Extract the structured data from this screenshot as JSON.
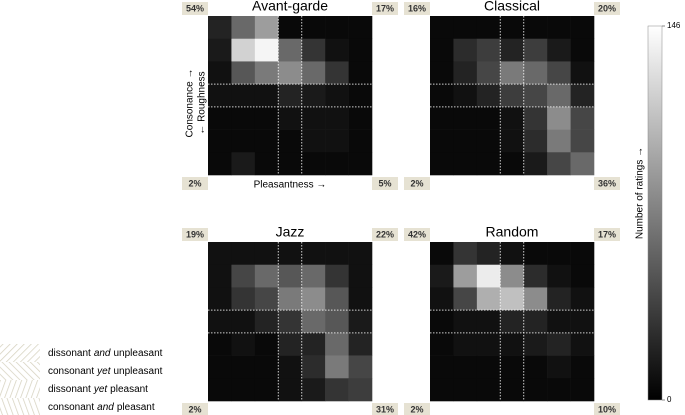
{
  "chart_data": [
    {
      "type": "heatmap",
      "title": "Avant-garde",
      "xlabel": "Pleasantness →",
      "ylabel": "Consonance →",
      "ylabel2": "← Roughness",
      "values": [
        [
          20,
          60,
          90,
          5,
          5,
          5,
          5
        ],
        [
          15,
          120,
          140,
          60,
          30,
          10,
          5
        ],
        [
          10,
          50,
          70,
          80,
          60,
          30,
          5
        ],
        [
          10,
          10,
          10,
          20,
          15,
          10,
          5
        ],
        [
          5,
          5,
          5,
          10,
          10,
          10,
          5
        ],
        [
          5,
          5,
          5,
          5,
          10,
          10,
          5
        ],
        [
          5,
          15,
          5,
          5,
          5,
          5,
          5
        ]
      ],
      "corner_values": [
        54,
        17,
        2,
        5
      ],
      "corner_labels": [
        "54%",
        "17%",
        "2%",
        "5%"
      ]
    },
    {
      "type": "heatmap",
      "title": "Classical",
      "values": [
        [
          5,
          5,
          5,
          5,
          5,
          5,
          5
        ],
        [
          5,
          25,
          35,
          20,
          35,
          15,
          5
        ],
        [
          5,
          20,
          40,
          70,
          60,
          40,
          10
        ],
        [
          5,
          10,
          20,
          35,
          40,
          60,
          20
        ],
        [
          5,
          5,
          5,
          10,
          30,
          80,
          40
        ],
        [
          5,
          5,
          5,
          10,
          25,
          70,
          40
        ],
        [
          5,
          5,
          5,
          5,
          15,
          40,
          60
        ]
      ],
      "corner_values": [
        16,
        20,
        2,
        36
      ],
      "corner_labels": [
        "16%",
        "20%",
        "2%",
        "36%"
      ]
    },
    {
      "type": "heatmap",
      "title": "Jazz",
      "values": [
        [
          10,
          10,
          10,
          10,
          10,
          10,
          10
        ],
        [
          10,
          40,
          60,
          50,
          60,
          30,
          10
        ],
        [
          10,
          30,
          40,
          70,
          80,
          50,
          10
        ],
        [
          10,
          10,
          20,
          30,
          60,
          50,
          15
        ],
        [
          5,
          10,
          5,
          20,
          20,
          60,
          20
        ],
        [
          5,
          5,
          5,
          10,
          25,
          70,
          40
        ],
        [
          5,
          5,
          5,
          10,
          15,
          30,
          35
        ]
      ],
      "corner_values": [
        19,
        22,
        2,
        31
      ],
      "corner_labels": [
        "19%",
        "22%",
        "2%",
        "31%"
      ]
    },
    {
      "type": "heatmap",
      "title": "Random",
      "values": [
        [
          5,
          30,
          20,
          10,
          5,
          5,
          5
        ],
        [
          15,
          90,
          135,
          80,
          25,
          10,
          5
        ],
        [
          10,
          40,
          100,
          110,
          80,
          20,
          10
        ],
        [
          5,
          10,
          10,
          20,
          20,
          10,
          10
        ],
        [
          5,
          10,
          10,
          10,
          15,
          20,
          10
        ],
        [
          5,
          5,
          5,
          5,
          5,
          10,
          5
        ],
        [
          5,
          5,
          5,
          5,
          5,
          5,
          5
        ]
      ],
      "corner_values": [
        42,
        17,
        2,
        10
      ],
      "corner_labels": [
        "42%",
        "17%",
        "2%",
        "10%"
      ]
    }
  ],
  "color_scale": {
    "label": "Number of ratings →",
    "lim": [
      0,
      146
    ],
    "ticks": [
      0,
      146
    ]
  },
  "legend": {
    "items": [
      {
        "parts": [
          "dissonant",
          "and",
          "unpleasant"
        ]
      },
      {
        "parts": [
          "consonant",
          "yet",
          "unpleasant"
        ]
      },
      {
        "parts": [
          "dissonant",
          "yet",
          "pleasant"
        ]
      },
      {
        "parts": [
          "consonant",
          "and",
          "pleasant"
        ]
      }
    ]
  }
}
